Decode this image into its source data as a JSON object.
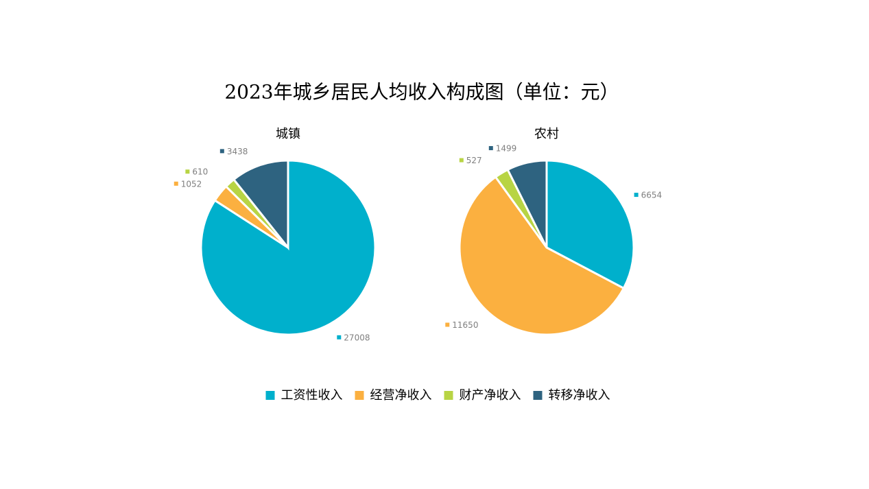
{
  "title": "2023年城乡居民人均收入构成图（单位：元）",
  "chart_data": [
    {
      "type": "pie",
      "title": "城镇",
      "categories": [
        "工资性收入",
        "经营净收入",
        "财产净收入",
        "转移净收入"
      ],
      "values": [
        27008,
        1052,
        610,
        3438
      ],
      "colors": [
        "#00b0cc",
        "#fbb040",
        "#b8d444",
        "#2e6380"
      ]
    },
    {
      "type": "pie",
      "title": "农村",
      "categories": [
        "工资性收入",
        "经营净收入",
        "财产净收入",
        "转移净收入"
      ],
      "values": [
        6654,
        11650,
        527,
        1499
      ],
      "colors": [
        "#00b0cc",
        "#fbb040",
        "#b8d444",
        "#2e6380"
      ]
    }
  ]
}
